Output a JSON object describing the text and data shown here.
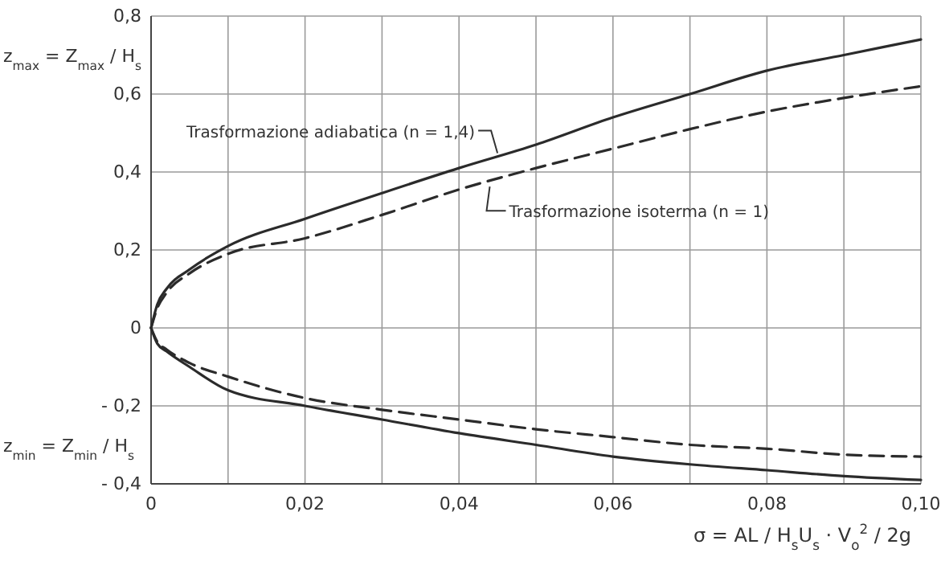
{
  "chart_data": {
    "type": "line",
    "ylabel": "z$_{max}$ = Z$_{max}$ / H$_{s}$",
    "xlabel": "σ = AL / H$_{s}$U$_{s}$ · V$_{o}$$^{2}$ / 2g",
    "xlim": [
      0,
      0.1
    ],
    "ylim": [
      -0.4,
      0.8
    ],
    "xticks": [
      {
        "value": 0,
        "label": "0"
      },
      {
        "value": 0.01,
        "label": null
      },
      {
        "value": 0.02,
        "label": "0,02"
      },
      {
        "value": 0.03,
        "label": null
      },
      {
        "value": 0.04,
        "label": "0,04"
      },
      {
        "value": 0.05,
        "label": null
      },
      {
        "value": 0.06,
        "label": "0,06"
      },
      {
        "value": 0.07,
        "label": null
      },
      {
        "value": 0.08,
        "label": "0,08"
      },
      {
        "value": 0.09,
        "label": null
      },
      {
        "value": 0.1,
        "label": "0,10"
      }
    ],
    "yticks": [
      {
        "value": -0.4,
        "label": "- 0,4"
      },
      {
        "value": -0.2,
        "label": "- 0,2"
      },
      0,
      {
        "value": 0.2,
        "label": "0,2"
      },
      {
        "value": 0.4,
        "label": "0,4"
      },
      {
        "value": 0.6,
        "label": "0,6"
      },
      {
        "value": 0.8,
        "label": "0,8"
      }
    ],
    "grid": true,
    "marker": "none",
    "annotations": [
      {
        "text": "Trasformazione adiabatica (n = 1,4)",
        "x": 0.045,
        "y": 0.44
      },
      {
        "text": "Trasformazione isoterma   (n = 1)",
        "x": 0.044,
        "y": 0.375
      },
      "z$_{min}$ = Z$_{min}$ / H$_{s}$"
    ],
    "series": [
      {
        "color": "#2b2b2b",
        "line_style": "solid",
        "x": [
          0,
          0.0008,
          0.002,
          0.005,
          0.01,
          0.02,
          0.03,
          0.04,
          0.05,
          0.06,
          0.07,
          0.08,
          0.09,
          0.1
        ],
        "values": [
          0,
          0.06,
          0.1,
          0.15,
          0.21,
          0.28,
          0.346,
          0.41,
          0.47,
          0.54,
          0.6,
          0.66,
          0.7,
          0.74
        ]
      },
      {
        "color": "#2b2b2b",
        "line_style": "dashed",
        "x": [
          0,
          0.0008,
          0.002,
          0.005,
          0.01,
          0.02,
          0.03,
          0.04,
          0.05,
          0.06,
          0.07,
          0.08,
          0.09,
          0.1
        ],
        "values": [
          0,
          0.05,
          0.09,
          0.14,
          0.19,
          0.23,
          0.29,
          0.355,
          0.41,
          0.46,
          0.51,
          0.555,
          0.59,
          0.62
        ]
      },
      {
        "color": "#2b2b2b",
        "line_style": "solid",
        "x": [
          0,
          0.0008,
          0.002,
          0.005,
          0.01,
          0.02,
          0.03,
          0.04,
          0.05,
          0.06,
          0.07,
          0.08,
          0.09,
          0.1
        ],
        "values": [
          0,
          -0.04,
          -0.06,
          -0.1,
          -0.16,
          -0.2,
          -0.235,
          -0.27,
          -0.3,
          -0.33,
          -0.35,
          -0.365,
          -0.38,
          -0.39
        ]
      },
      {
        "color": "#2b2b2b",
        "line_style": "dashed",
        "x": [
          0,
          0.0008,
          0.002,
          0.005,
          0.01,
          0.02,
          0.03,
          0.04,
          0.05,
          0.06,
          0.07,
          0.08,
          0.09,
          0.1
        ],
        "values": [
          0,
          -0.035,
          -0.055,
          -0.09,
          -0.125,
          -0.18,
          -0.21,
          -0.235,
          -0.26,
          -0.28,
          -0.3,
          -0.31,
          -0.325,
          -0.33
        ]
      }
    ]
  }
}
